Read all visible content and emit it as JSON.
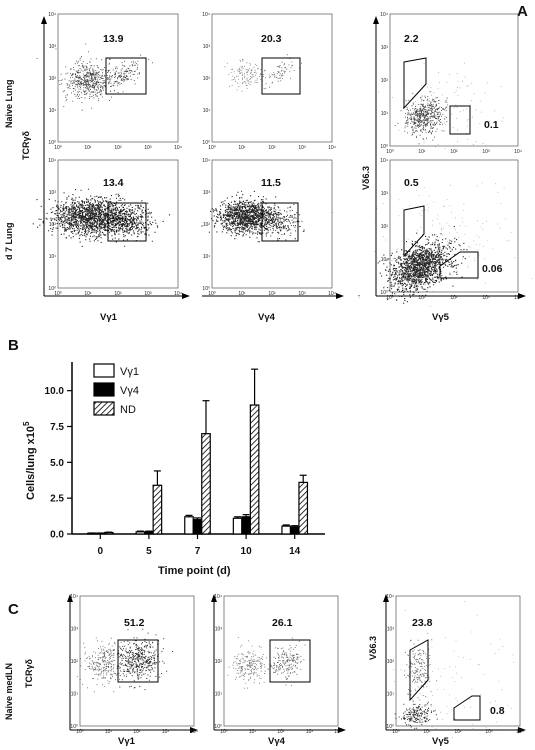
{
  "panel_labels": {
    "a": "A",
    "b": "B",
    "c": "C"
  },
  "log_ticks": [
    "10⁰",
    "10¹",
    "10²",
    "10³",
    "10⁴"
  ],
  "panel_a": {
    "row_labels": [
      "Naive Lung",
      "d 7 Lung"
    ],
    "y_label_left": "TCRγδ",
    "y_label_right": "Vδ6.3",
    "x_labels": [
      "Vγ1",
      "Vγ4",
      "Vγ5"
    ],
    "gates": {
      "r0_vg1": "13.9",
      "r0_vg4": "20.3",
      "r0_vd63": "2.2",
      "r0_vg5": "0.1",
      "r1_vg1": "13.4",
      "r1_vg4": "11.5",
      "r1_vd63": "0.5",
      "r1_vg5": "0.06"
    }
  },
  "panel_c": {
    "row_label": "Naive medLN",
    "y_label_left": "TCRγδ",
    "y_label_right": "Vδ6.3",
    "x_labels": [
      "Vγ1",
      "Vγ4",
      "Vγ5"
    ],
    "gates": {
      "vg1": "51.2",
      "vg4": "26.1",
      "vd63": "23.8",
      "vg5": "0.8"
    }
  },
  "chart_data": {
    "type": "bar",
    "xlabel": "Time point (d)",
    "ylabel": "Cells/lung x10",
    "ylabel_exp": "5",
    "categories": [
      "0",
      "5",
      "7",
      "10",
      "14"
    ],
    "ylim": [
      0,
      12
    ],
    "yticks": [
      "0.0",
      "2.5",
      "5.0",
      "7.5",
      "10.0"
    ],
    "series": [
      {
        "name": "Vγ1",
        "values": [
          0.05,
          0.15,
          1.2,
          1.1,
          0.55
        ],
        "errors": [
          0.02,
          0.05,
          0.1,
          0.1,
          0.08
        ],
        "fill": "#ffffff"
      },
      {
        "name": "Vγ4",
        "values": [
          0.05,
          0.15,
          1.0,
          1.2,
          0.5
        ],
        "errors": [
          0.02,
          0.05,
          0.12,
          0.15,
          0.08
        ],
        "fill": "#000000"
      },
      {
        "name": "ND",
        "values": [
          0.1,
          3.4,
          7.0,
          9.0,
          3.6
        ],
        "errors": [
          0.03,
          1.0,
          2.3,
          2.5,
          0.5
        ],
        "fill": "hatch"
      }
    ],
    "legend": {
      "position": "top-left",
      "labels": [
        "Vγ1",
        "Vγ4",
        "ND"
      ]
    }
  }
}
